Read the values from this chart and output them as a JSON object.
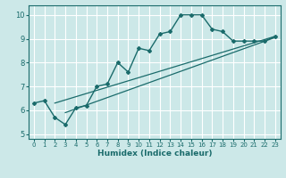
{
  "xlabel": "Humidex (Indice chaleur)",
  "bg_color": "#cce8e8",
  "grid_color": "#ffffff",
  "line_color": "#1a6b6b",
  "xlim": [
    -0.5,
    23.5
  ],
  "ylim": [
    4.8,
    10.4
  ],
  "xticks": [
    0,
    1,
    2,
    3,
    4,
    5,
    6,
    7,
    8,
    9,
    10,
    11,
    12,
    13,
    14,
    15,
    16,
    17,
    18,
    19,
    20,
    21,
    22,
    23
  ],
  "yticks": [
    5,
    6,
    7,
    8,
    9,
    10
  ],
  "line1_x": [
    0,
    1,
    2,
    3,
    4,
    5,
    6,
    7,
    8,
    9,
    10,
    11,
    12,
    13,
    14,
    15,
    16,
    17,
    18,
    19,
    20,
    21,
    22,
    23
  ],
  "line1_y": [
    6.3,
    6.4,
    5.7,
    5.4,
    6.1,
    6.2,
    7.0,
    7.1,
    8.0,
    7.6,
    8.6,
    8.5,
    9.2,
    9.3,
    10.0,
    10.0,
    10.0,
    9.4,
    9.3,
    8.9,
    8.9,
    8.9,
    8.9,
    9.1
  ],
  "line2_x": [
    2,
    23
  ],
  "line2_y": [
    6.3,
    9.1
  ],
  "line3_x": [
    3,
    23
  ],
  "line3_y": [
    5.9,
    9.05
  ]
}
